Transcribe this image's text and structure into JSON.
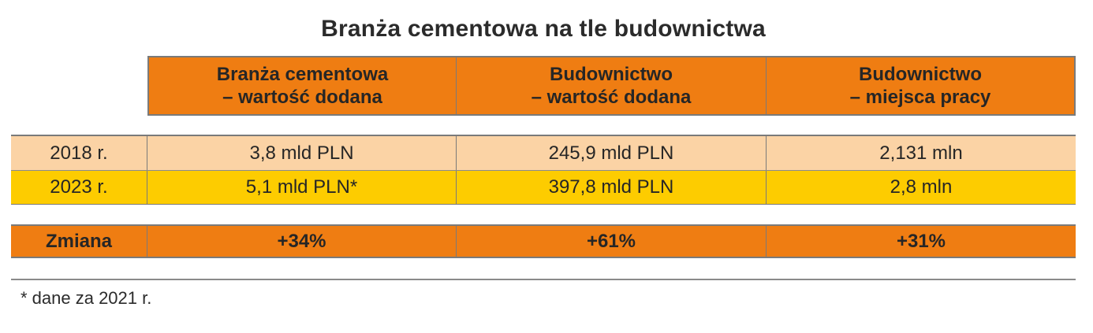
{
  "title": "Branża cementowa na tle budownictwa",
  "columns": [
    {
      "line1": "Branża cementowa",
      "line2": "– wartość dodana"
    },
    {
      "line1": "Budownictwo",
      "line2": "– wartość dodana"
    },
    {
      "line1": "Budownictwo",
      "line2": "– miejsca pracy"
    }
  ],
  "rows": [
    {
      "label": "2018 r.",
      "values": [
        "3,8 mld PLN",
        "245,9 mld PLN",
        "2,131 mln"
      ]
    },
    {
      "label": "2023 r.",
      "values": [
        "5,1 mld PLN*",
        "397,8 mld PLN",
        "2,8 mln"
      ]
    }
  ],
  "change": {
    "label": "Zmiana",
    "values": [
      "+34%",
      "+61%",
      "+31%"
    ]
  },
  "footnote": "* dane za 2021 r.",
  "colors": {
    "header_orange": "#ef7d12",
    "row_2018": "#fbd3a5",
    "row_2023": "#fdcc00",
    "change_orange": "#ef7d12"
  }
}
